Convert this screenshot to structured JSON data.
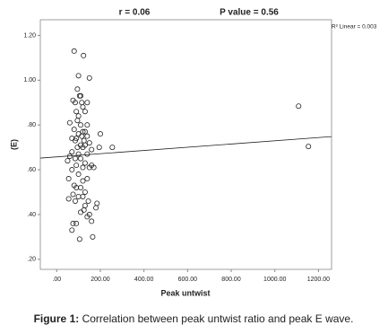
{
  "chart_data": {
    "type": "scatter",
    "annotations": [
      "r = 0.06",
      "P value = 0.56"
    ],
    "fit_label": "R² Linear = 0.003",
    "x_label": "Peak untwist",
    "y_label": "(E)",
    "caption_label": "Figure 1:",
    "caption": "Correlation between peak untwist ratio and peak E wave.",
    "xlim": [
      -75,
      1260
    ],
    "ylim": [
      0.155,
      1.27
    ],
    "xticks": [
      {
        "value": 0,
        "label": ".00"
      },
      {
        "value": 200,
        "label": "200.00"
      },
      {
        "value": 400,
        "label": "400.00"
      },
      {
        "value": 600,
        "label": "600.00"
      },
      {
        "value": 800,
        "label": "800.00"
      },
      {
        "value": 1000,
        "label": "1000.00"
      },
      {
        "value": 1200,
        "label": "1200.00"
      }
    ],
    "yticks": [
      {
        "value": 0.2,
        "label": ".20"
      },
      {
        "value": 0.4,
        "label": ".40"
      },
      {
        "value": 0.6,
        "label": ".60"
      },
      {
        "value": 0.8,
        "label": ".80"
      },
      {
        "value": 1.0,
        "label": "1.00"
      },
      {
        "value": 1.2,
        "label": "1.20"
      }
    ],
    "x": [
      80,
      123,
      100,
      150,
      95,
      105,
      110,
      75,
      85,
      115,
      140,
      120,
      90,
      130,
      100,
      95,
      60,
      140,
      110,
      80,
      120,
      130,
      200,
      100,
      115,
      140,
      90,
      70,
      85,
      125,
      150,
      110,
      130,
      95,
      120,
      195,
      255,
      160,
      70,
      100,
      140,
      60,
      85,
      110,
      50,
      130,
      90,
      160,
      150,
      120,
      70,
      170,
      100,
      55,
      140,
      120,
      80,
      90,
      110,
      130,
      75,
      100,
      55,
      120,
      85,
      145,
      185,
      180,
      130,
      125,
      110,
      150,
      140,
      160,
      75,
      90,
      70,
      165,
      105,
      1109,
      1154
    ],
    "y": [
      1.13,
      1.11,
      1.02,
      1.01,
      0.96,
      0.93,
      0.93,
      0.91,
      0.9,
      0.9,
      0.9,
      0.88,
      0.86,
      0.86,
      0.84,
      0.82,
      0.81,
      0.8,
      0.8,
      0.78,
      0.77,
      0.77,
      0.76,
      0.76,
      0.75,
      0.75,
      0.74,
      0.74,
      0.73,
      0.73,
      0.72,
      0.71,
      0.71,
      0.7,
      0.7,
      0.7,
      0.7,
      0.69,
      0.68,
      0.67,
      0.67,
      0.66,
      0.65,
      0.65,
      0.64,
      0.63,
      0.62,
      0.62,
      0.61,
      0.61,
      0.6,
      0.61,
      0.58,
      0.56,
      0.56,
      0.55,
      0.53,
      0.52,
      0.52,
      0.5,
      0.49,
      0.48,
      0.47,
      0.48,
      0.46,
      0.46,
      0.45,
      0.43,
      0.44,
      0.42,
      0.41,
      0.4,
      0.39,
      0.37,
      0.36,
      0.36,
      0.33,
      0.3,
      0.29,
      0.884,
      0.704
    ],
    "trend_line": {
      "x": [
        -75,
        1260
      ],
      "y": [
        0.652,
        0.748
      ]
    }
  }
}
